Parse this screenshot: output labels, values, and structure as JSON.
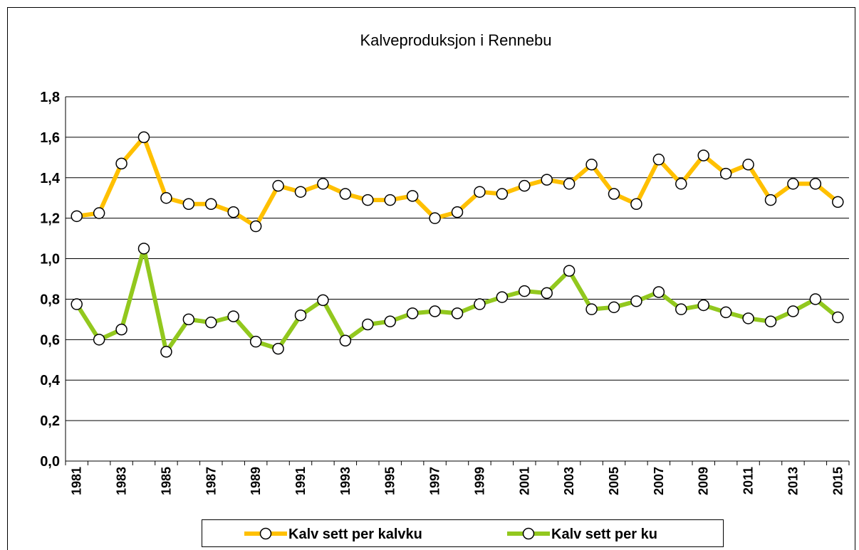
{
  "chart_data": {
    "type": "line",
    "title": "Kalveproduksjon i Rennebu",
    "categories": [
      "1981",
      null,
      "1983",
      null,
      "1985",
      null,
      "1987",
      null,
      "1989",
      null,
      "1991",
      null,
      "1993",
      null,
      "1995",
      null,
      "1997",
      null,
      "1999",
      null,
      "2001",
      null,
      "2003",
      null,
      "2005",
      null,
      "2007",
      null,
      "2009",
      null,
      "2011",
      null,
      "2013",
      null,
      "2015"
    ],
    "series": [
      {
        "name": "Kalv sett per kalvku",
        "color": "#FFC000",
        "values": [
          1.21,
          1.225,
          1.47,
          1.6,
          1.3,
          1.27,
          1.27,
          1.23,
          1.16,
          1.36,
          1.33,
          1.37,
          1.32,
          1.29,
          1.29,
          1.31,
          1.2,
          1.23,
          1.33,
          1.32,
          1.36,
          1.39,
          1.37,
          1.465,
          1.32,
          1.27,
          1.49,
          1.37,
          1.51,
          1.42,
          1.465,
          1.29,
          1.37,
          1.37,
          1.28
        ]
      },
      {
        "name": "Kalv sett per ku",
        "color": "#92C81E",
        "values": [
          0.775,
          0.6,
          0.65,
          1.05,
          0.54,
          0.7,
          0.685,
          0.715,
          0.59,
          0.555,
          0.72,
          0.795,
          0.595,
          0.675,
          0.69,
          0.73,
          0.74,
          0.73,
          0.775,
          0.81,
          0.84,
          0.83,
          0.94,
          0.75,
          0.76,
          0.79,
          0.835,
          0.75,
          0.77,
          0.735,
          0.705,
          0.69,
          0.74,
          0.8,
          0.71
        ]
      }
    ],
    "ylim": [
      0,
      1.8
    ],
    "yticks": [
      {
        "value": 0,
        "label": "0,0"
      },
      {
        "value": 0.2,
        "label": "0,2"
      },
      {
        "value": 0.4,
        "label": "0,4"
      },
      {
        "value": 0.6,
        "label": "0,6"
      },
      {
        "value": 0.8,
        "label": "0,8"
      },
      {
        "value": 1.0,
        "label": "1,0"
      },
      {
        "value": 1.2,
        "label": "1,2"
      },
      {
        "value": 1.4,
        "label": "1,4"
      },
      {
        "value": 1.6,
        "label": "1,6"
      },
      {
        "value": 1.8,
        "label": "1,8"
      }
    ],
    "grid": true
  }
}
